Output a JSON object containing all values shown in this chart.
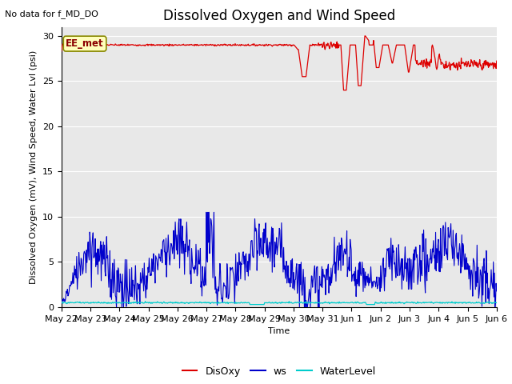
{
  "title": "Dissolved Oxygen and Wind Speed",
  "top_left_text": "No data for f_MD_DO",
  "annotation_text": "EE_met",
  "ylabel": "Dissolved Oxygen (mV), Wind Speed, Water Lvl (psi)",
  "xlabel": "Time",
  "ylim": [
    0,
    31
  ],
  "yticks": [
    0,
    5,
    10,
    15,
    20,
    25,
    30
  ],
  "x_tick_labels": [
    "May 22",
    "May 23",
    "May 24",
    "May 25",
    "May 26",
    "May 27",
    "May 28",
    "May 29",
    "May 30",
    "May 31",
    "Jun 1",
    "Jun 2",
    "Jun 3",
    "Jun 4",
    "Jun 5",
    "Jun 6"
  ],
  "disoxy_color": "#dd0000",
  "ws_color": "#0000cc",
  "wl_color": "#00cccc",
  "legend_labels": [
    "DisOxy",
    "ws",
    "WaterLevel"
  ],
  "bg_color": "#e8e8e8",
  "title_fontsize": 12,
  "label_fontsize": 8,
  "tick_fontsize": 8
}
